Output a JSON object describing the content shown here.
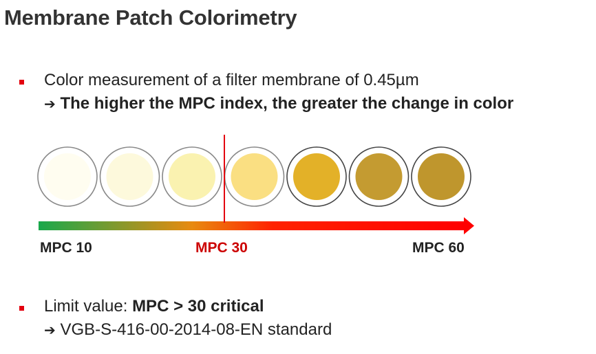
{
  "title": "Membrane Patch Colorimetry",
  "bullet1": {
    "text": "Color measurement of a filter membrane of 0.45µm",
    "arrow": "➔",
    "emphasis": "The higher the MPC index, the greater the change in color"
  },
  "scale": {
    "patches": [
      {
        "color": "#fffdf0",
        "ring": "#888888"
      },
      {
        "color": "#fdf9dc",
        "ring": "#888888"
      },
      {
        "color": "#faf2b0",
        "ring": "#888888"
      },
      {
        "color": "#fadf82",
        "ring": "#888888"
      },
      {
        "color": "#e3b128",
        "ring": "#444444"
      },
      {
        "color": "#c49b31",
        "ring": "#444444"
      },
      {
        "color": "#bf962d",
        "ring": "#444444"
      }
    ],
    "labels": {
      "left": "MPC 10",
      "mid": "MPC 30",
      "right": "MPC 60"
    },
    "gradient_colors": [
      "#19a84b",
      "#e88a10",
      "#ff2200",
      "#ff0000"
    ],
    "threshold_color": "#e3000f"
  },
  "bullet2": {
    "prefix": "Limit value: ",
    "emphasis": "MPC > 30 critical",
    "arrow": "➔",
    "standard": "VGB-S-416-00-2014-08-EN standard"
  }
}
